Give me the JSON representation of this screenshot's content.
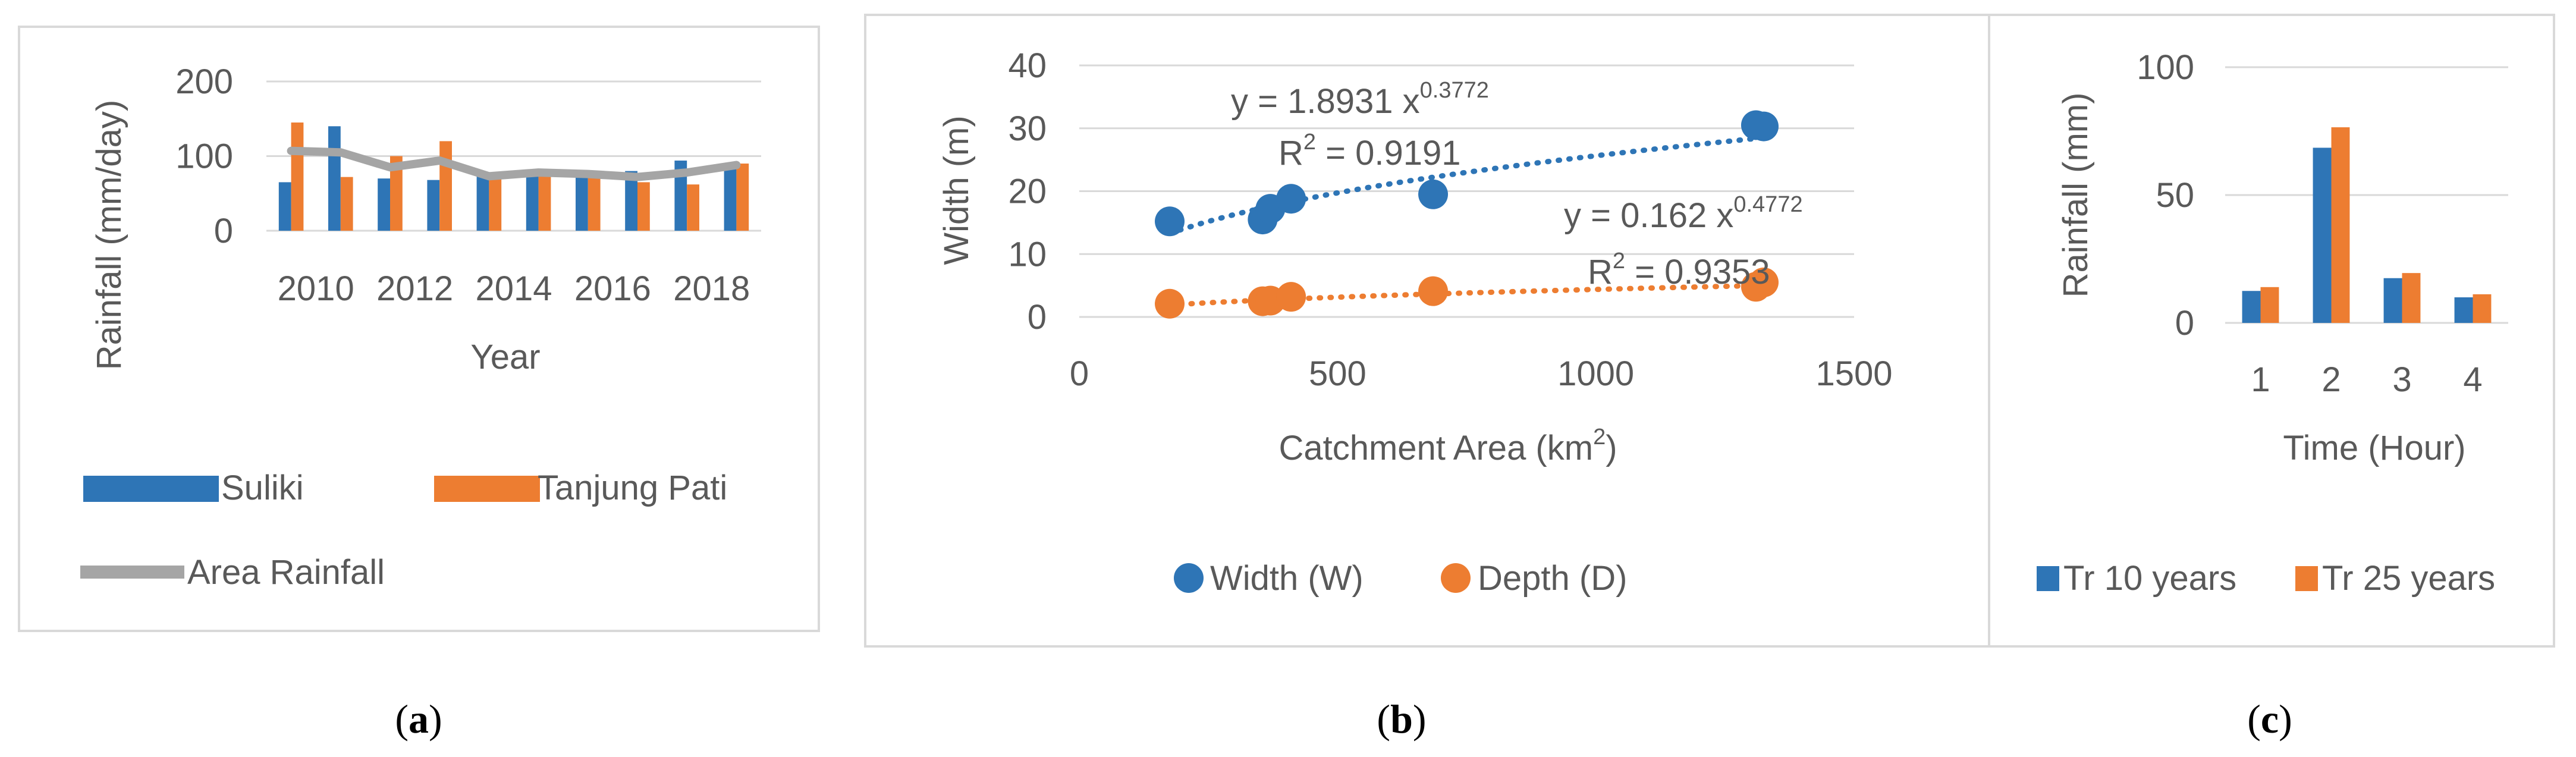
{
  "colors": {
    "blue": "#2e75b6",
    "orange": "#ed7d31",
    "gray": "#a5a5a5",
    "grid": "#d9d9d9",
    "frame": "#d9d9d9",
    "text": "#595959"
  },
  "captions": {
    "a": "a",
    "b": "b",
    "c": "c"
  },
  "chart_data": [
    {
      "id": "a",
      "type": "bar",
      "title": "",
      "xlabel": "Year",
      "ylabel": "Rainfall (mm/day)",
      "ylim": [
        0,
        200
      ],
      "yticks": [
        "0",
        "100",
        "200"
      ],
      "categories": [
        "2010",
        "2011",
        "2012",
        "2013",
        "2014",
        "2015",
        "2016",
        "2017",
        "2018",
        "2019"
      ],
      "xtick_labels": [
        "2010",
        "2012",
        "2014",
        "2016",
        "2018"
      ],
      "series": [
        {
          "name": "Suliki",
          "type": "bar",
          "values": [
            65,
            140,
            70,
            68,
            75,
            78,
            72,
            80,
            94,
            85
          ]
        },
        {
          "name": "Tanjung Pati",
          "type": "bar",
          "values": [
            145,
            72,
            100,
            120,
            72,
            75,
            75,
            65,
            62,
            90
          ]
        },
        {
          "name": "Area Rainfall",
          "type": "line",
          "values": [
            107,
            105,
            85,
            94,
            73,
            78,
            76,
            72,
            78,
            88
          ]
        }
      ],
      "grid": true,
      "legend": "bottom"
    },
    {
      "id": "b",
      "type": "scatter",
      "title": "",
      "xlabel": "Catchment Area (km",
      "xlabel_sup": "2",
      "xlabel_end": ")",
      "ylabel": "Width (m)",
      "xlim": [
        0,
        1500
      ],
      "ylim": [
        0,
        40
      ],
      "xticks": [
        "0",
        "500",
        "1000",
        "1500"
      ],
      "yticks": [
        "0",
        "10",
        "20",
        "30",
        "40"
      ],
      "series": [
        {
          "name": "Width (W)",
          "x": [
            175,
            355,
            370,
            410,
            685,
            1310,
            1325
          ],
          "y": [
            15.2,
            15.5,
            17.2,
            18.8,
            19.5,
            30.5,
            30.3
          ],
          "trend": {
            "a": 1.8931,
            "b": 0.3772,
            "eq_base": "y = 1.8931 x",
            "eq_exp": "0.3772",
            "r2_base": "R",
            "r2_sup": "2",
            "r2_val": " = 0.9191"
          }
        },
        {
          "name": "Depth (D)",
          "x": [
            175,
            355,
            370,
            410,
            685,
            1310,
            1325
          ],
          "y": [
            2.1,
            2.5,
            2.6,
            3.2,
            4.1,
            4.8,
            5.5
          ],
          "trend": {
            "a": 0.162,
            "b": 0.4772,
            "eq_base": "y = 0.162 x",
            "eq_exp": "0.4772",
            "r2_base": "R",
            "r2_sup": "2",
            "r2_val": " = 0.9353"
          }
        }
      ],
      "grid": true,
      "legend": "bottom"
    },
    {
      "id": "c",
      "type": "bar",
      "title": "",
      "xlabel": "Time (Hour)",
      "ylabel": "Rainfall (mm)",
      "ylim": [
        0,
        100
      ],
      "yticks": [
        "0",
        "50",
        "100"
      ],
      "categories": [
        "1",
        "2",
        "3",
        "4"
      ],
      "series": [
        {
          "name": "Tr 10 years",
          "values": [
            12.5,
            68.5,
            17.5,
            10.0
          ]
        },
        {
          "name": "Tr 25 years",
          "values": [
            14.0,
            76.5,
            19.5,
            11.2
          ]
        }
      ],
      "grid": true,
      "legend": "bottom"
    }
  ]
}
